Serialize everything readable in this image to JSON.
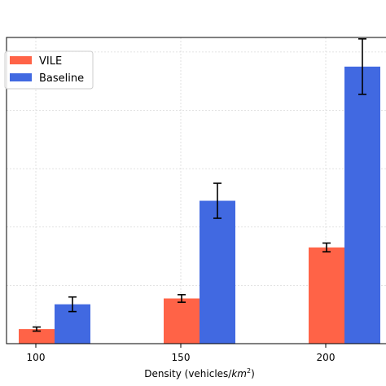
{
  "chart_data": {
    "type": "bar",
    "categories": [
      "100",
      "150",
      "200"
    ],
    "series": [
      {
        "name": "VILE",
        "color": "#ff6347",
        "values": [
          0.5,
          1.55,
          3.3
        ],
        "errors": [
          0.07,
          0.13,
          0.15
        ]
      },
      {
        "name": "Baseline",
        "color": "#4169e1",
        "values": [
          1.35,
          4.9,
          9.5
        ],
        "errors": [
          0.25,
          0.6,
          0.95
        ]
      }
    ],
    "xlabel": "Density (vehicles/",
    "xlabel_unit": "km",
    "xlabel_sup": "2",
    "xlabel_close": ")",
    "ylabel": "",
    "ylim": [
      0,
      10.5
    ],
    "grid": true,
    "legend_position": "top-left"
  }
}
